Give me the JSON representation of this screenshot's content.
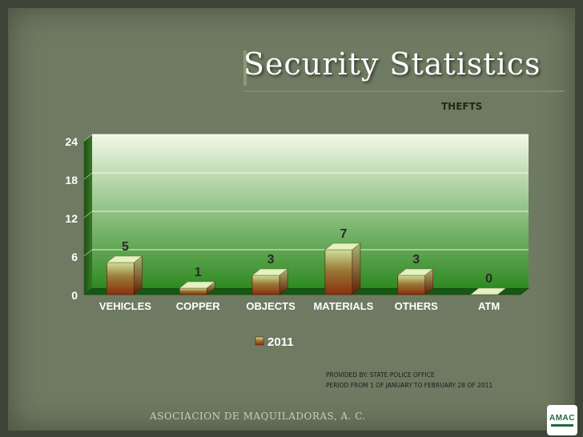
{
  "slide": {
    "title": "Security Statistics",
    "source_line1": "PROVIDED BY: STATE POLICE OFFICE",
    "source_line2": "PERIOD FROM 1 OF JANUARY TO FEBRUARY 28 OF 2011",
    "footer": "ASOCIACION DE MAQUILADORAS, A. C.",
    "logo_text": "AMAC"
  },
  "colors": {
    "bar_top": "#cfe09a",
    "bar_bottom": "#8a2f0f",
    "plot_top": "#f2f8e6",
    "plot_bottom": "#2f8a22"
  },
  "chart_data": {
    "type": "bar",
    "title": "THEFTS",
    "categories": [
      "VEHICLES",
      "COPPER",
      "OBJECTS",
      "MATERIALS",
      "OTHERS",
      "ATM"
    ],
    "series": [
      {
        "name": "2011",
        "values": [
          5,
          1,
          3,
          7,
          3,
          0
        ]
      }
    ],
    "yticks": [
      0,
      6,
      12,
      18,
      24
    ],
    "ylim": [
      0,
      24
    ],
    "grid": true,
    "legend": "bottom"
  }
}
